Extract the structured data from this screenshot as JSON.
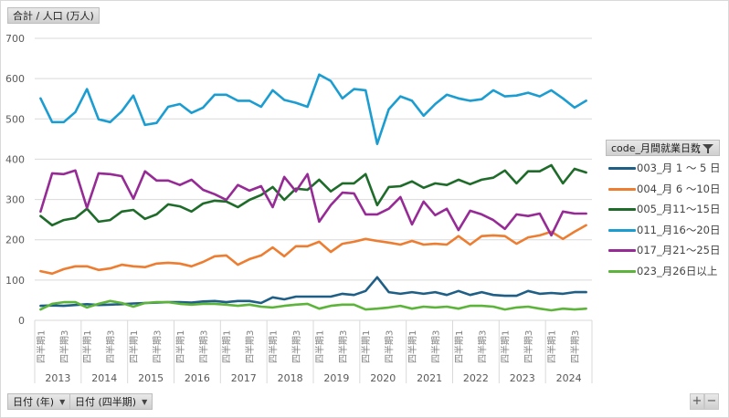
{
  "ui": {
    "value_field": "合計 / 人口 (万人)",
    "year_field": "日付 (年)",
    "quarter_field": "日付 (四半期)",
    "legend_title": "code_月間就業日数",
    "zoom_in": "+",
    "zoom_out": "−",
    "dropdown_icon": "dropdown-arrow-icon",
    "filter_icon": "filter-icon"
  },
  "chart_data": {
    "type": "line",
    "title": "",
    "ylabel": "合計 / 人口 (万人)",
    "xlabel": "",
    "ylim": [
      0,
      700
    ],
    "yticks": [
      0,
      100,
      200,
      300,
      400,
      500,
      600,
      700
    ],
    "grid": true,
    "legend_position": "right",
    "years": [
      "2013",
      "2014",
      "2015",
      "2016",
      "2017",
      "2018",
      "2019",
      "2020",
      "2021",
      "2022",
      "2023",
      "2024"
    ],
    "quarter_labels": [
      "四半期1",
      "四半期3"
    ],
    "categories": [
      "2013Q1",
      "2013Q2",
      "2013Q3",
      "2013Q4",
      "2014Q1",
      "2014Q2",
      "2014Q3",
      "2014Q4",
      "2015Q1",
      "2015Q2",
      "2015Q3",
      "2015Q4",
      "2016Q1",
      "2016Q2",
      "2016Q3",
      "2016Q4",
      "2017Q1",
      "2017Q2",
      "2017Q3",
      "2017Q4",
      "2018Q1",
      "2018Q2",
      "2018Q3",
      "2018Q4",
      "2019Q1",
      "2019Q2",
      "2019Q3",
      "2019Q4",
      "2020Q1",
      "2020Q2",
      "2020Q3",
      "2020Q4",
      "2021Q1",
      "2021Q2",
      "2021Q3",
      "2021Q4",
      "2022Q1",
      "2022Q2",
      "2022Q3",
      "2022Q4",
      "2023Q1",
      "2023Q2",
      "2023Q3",
      "2023Q4",
      "2024Q1",
      "2024Q2",
      "2024Q3",
      "2024Q4"
    ],
    "series": [
      {
        "name": "003_月 1 ～ 5 日",
        "color": "#1f5f86",
        "values": [
          36,
          37,
          36,
          38,
          40,
          38,
          39,
          40,
          42,
          43,
          44,
          45,
          45,
          44,
          47,
          48,
          45,
          48,
          48,
          43,
          57,
          52,
          59,
          59,
          59,
          59,
          66,
          63,
          73,
          107,
          70,
          66,
          70,
          66,
          70,
          63,
          73,
          63,
          70,
          63,
          61,
          61,
          73,
          66,
          68,
          66,
          70,
          70
        ]
      },
      {
        "name": "004_月 6 ～10日",
        "color": "#ed7d31",
        "values": [
          122,
          116,
          127,
          134,
          134,
          125,
          129,
          138,
          134,
          132,
          141,
          143,
          141,
          134,
          145,
          159,
          161,
          138,
          152,
          161,
          181,
          159,
          184,
          184,
          195,
          170,
          190,
          195,
          202,
          197,
          193,
          188,
          197,
          188,
          190,
          188,
          209,
          188,
          209,
          211,
          209,
          190,
          206,
          211,
          220,
          202,
          220,
          236
        ]
      },
      {
        "name": "005_月11～15日",
        "color": "#1e6b2a",
        "values": [
          259,
          236,
          249,
          254,
          277,
          245,
          249,
          270,
          274,
          252,
          263,
          288,
          283,
          270,
          290,
          297,
          295,
          281,
          299,
          311,
          331,
          299,
          327,
          324,
          349,
          320,
          340,
          340,
          363,
          286,
          331,
          333,
          345,
          329,
          340,
          336,
          349,
          338,
          349,
          354,
          372,
          340,
          370,
          370,
          385,
          340,
          376,
          367
        ]
      },
      {
        "name": "011_月16～20日",
        "color": "#1b9dd1",
        "values": [
          551,
          492,
          492,
          517,
          574,
          499,
          492,
          519,
          558,
          485,
          490,
          530,
          537,
          515,
          528,
          560,
          560,
          545,
          545,
          530,
          571,
          547,
          540,
          530,
          610,
          594,
          551,
          574,
          571,
          438,
          524,
          556,
          545,
          508,
          537,
          560,
          551,
          545,
          549,
          571,
          556,
          558,
          565,
          556,
          571,
          551,
          528,
          545
        ]
      },
      {
        "name": "017_月21～25日",
        "color": "#962b96",
        "values": [
          270,
          365,
          363,
          372,
          279,
          365,
          363,
          358,
          302,
          370,
          347,
          347,
          336,
          349,
          324,
          313,
          299,
          336,
          322,
          333,
          281,
          356,
          320,
          363,
          245,
          286,
          317,
          315,
          263,
          263,
          277,
          306,
          238,
          295,
          261,
          277,
          224,
          272,
          263,
          249,
          227,
          263,
          259,
          265,
          211,
          270,
          265,
          265
        ]
      },
      {
        "name": "023_月26日以上",
        "color": "#5cb43a",
        "values": [
          27,
          41,
          45,
          45,
          32,
          41,
          48,
          43,
          34,
          43,
          45,
          45,
          41,
          39,
          41,
          41,
          39,
          36,
          39,
          34,
          32,
          36,
          39,
          41,
          29,
          36,
          39,
          39,
          27,
          29,
          32,
          36,
          29,
          34,
          32,
          34,
          29,
          36,
          36,
          34,
          27,
          32,
          34,
          29,
          25,
          29,
          27,
          29
        ]
      }
    ]
  }
}
